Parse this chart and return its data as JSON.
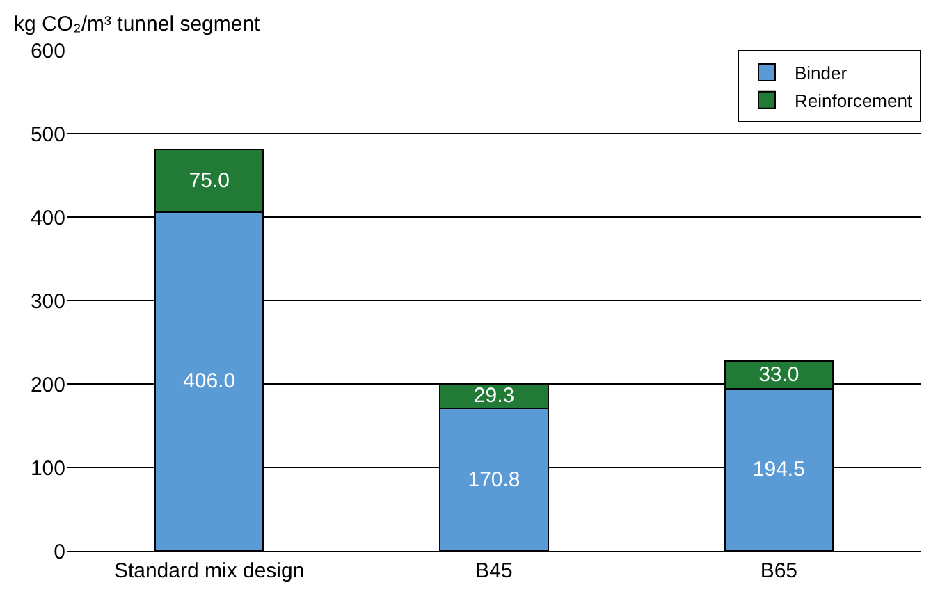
{
  "chart_data": {
    "type": "bar",
    "ylabel": "kg CO₂/m³ tunnel segment",
    "categories": [
      "Standard mix design",
      "B45",
      "B65"
    ],
    "series": [
      {
        "name": "Binder",
        "color": "#5b9bd5",
        "values": [
          406,
          170.8,
          194.5
        ],
        "value_labels": [
          "406.0",
          "170.8",
          "194.5"
        ]
      },
      {
        "name": "Reinforcement",
        "color": "#217a35",
        "values": [
          75,
          29.3,
          33
        ],
        "value_labels": [
          "75.0",
          "29.3",
          "33.0"
        ]
      }
    ],
    "stacked": true,
    "ylim": [
      0,
      600
    ],
    "yticks": [
      0,
      100,
      200,
      300,
      400,
      500,
      600
    ],
    "grid": "y",
    "legend": "top right"
  }
}
